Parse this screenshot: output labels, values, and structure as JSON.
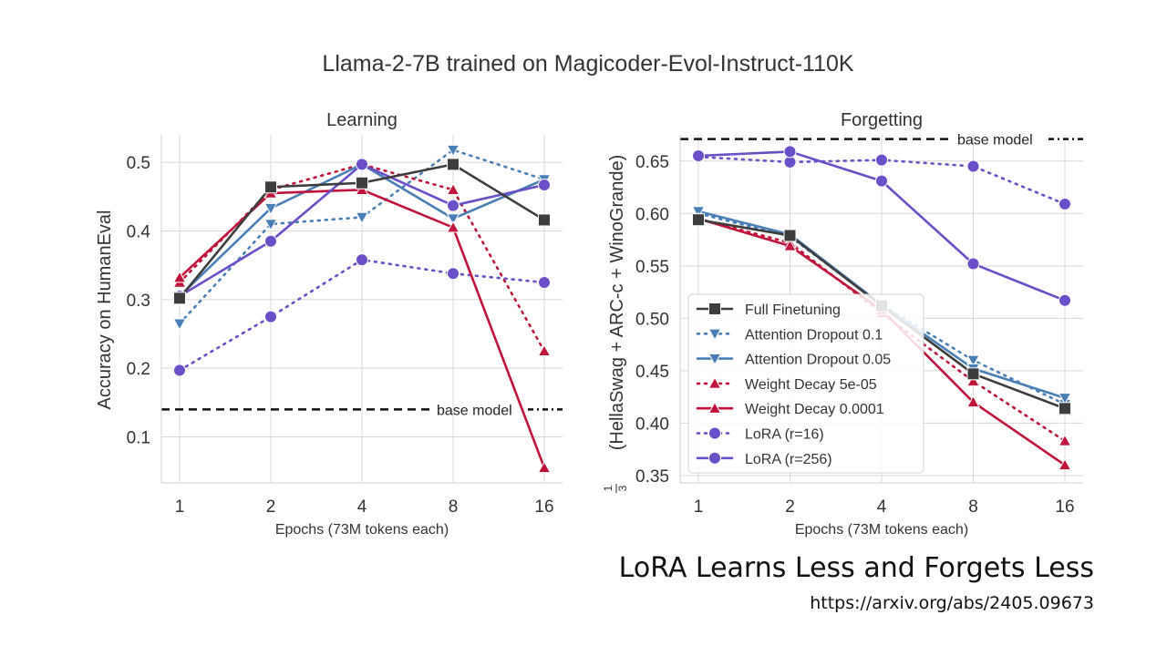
{
  "figure": {
    "suptitle": "Llama-2-7B trained on Magicoder-Evol-Instruct-110K"
  },
  "caption": "LoRA Learns Less and Forgets Less",
  "link": "https://arxiv.org/abs/2405.09673",
  "styles": {
    "Full Finetuning": {
      "color": "#3d3d3d",
      "dash": "solid",
      "marker": "square"
    },
    "Attention Dropout 0.1": {
      "color": "#4a7fb5",
      "dash": "dotted",
      "marker": "tri-down"
    },
    "Attention Dropout 0.05": {
      "color": "#4a7fb5",
      "dash": "solid",
      "marker": "tri-down"
    },
    "Weight Decay 5e-05": {
      "color": "#c0143c",
      "dash": "dotted",
      "marker": "tri-up"
    },
    "Weight Decay 0.0001": {
      "color": "#c0143c",
      "dash": "solid",
      "marker": "tri-up"
    },
    "LoRA (r=16)": {
      "color": "#6a4fc8",
      "dash": "dotted",
      "marker": "circle"
    },
    "LoRA (r=256)": {
      "color": "#6a4fc8",
      "dash": "solid",
      "marker": "circle"
    }
  },
  "chart_data": [
    {
      "type": "line",
      "title": "Learning",
      "xlabel": "Epochs (73M tokens each)",
      "ylabel": "Accuracy on HumanEval",
      "categories": [
        "1",
        "2",
        "4",
        "8",
        "16"
      ],
      "ylim": [
        0.033,
        0.54
      ],
      "yticks": [
        0.1,
        0.2,
        0.3,
        0.4,
        0.5
      ],
      "ytick_labels": [
        "0.1",
        "0.2",
        "0.3",
        "0.4",
        "0.5"
      ],
      "grid": true,
      "baseline": {
        "label": "base model",
        "value": 0.14
      },
      "series": [
        {
          "name": "Attention Dropout 0.1",
          "values": [
            0.265,
            0.41,
            0.42,
            0.518,
            0.475
          ]
        },
        {
          "name": "Weight Decay 5e-05",
          "values": [
            0.325,
            0.46,
            0.497,
            0.46,
            0.225
          ]
        },
        {
          "name": "LoRA (r=16)",
          "values": [
            0.197,
            0.275,
            0.358,
            0.338,
            0.325
          ]
        },
        {
          "name": "Attention Dropout 0.05",
          "values": [
            0.305,
            0.433,
            0.497,
            0.418,
            0.475
          ]
        },
        {
          "name": "Weight Decay 0.0001",
          "values": [
            0.332,
            0.455,
            0.46,
            0.405,
            0.055
          ]
        },
        {
          "name": "LoRA (r=256)",
          "values": [
            0.305,
            0.385,
            0.497,
            0.437,
            0.467
          ]
        },
        {
          "name": "Full Finetuning",
          "values": [
            0.302,
            0.464,
            0.47,
            0.497,
            0.416
          ]
        }
      ]
    },
    {
      "type": "line",
      "title": "Forgetting",
      "xlabel": "Epochs (73M tokens each)",
      "ylabel": "(HellaSwag + ARC-c + WinoGrande)",
      "ylabel_fraction": [
        "1",
        "3"
      ],
      "categories": [
        "1",
        "2",
        "4",
        "8",
        "16"
      ],
      "ylim": [
        0.343,
        0.675
      ],
      "yticks": [
        0.35,
        0.4,
        0.45,
        0.5,
        0.55,
        0.6,
        0.65
      ],
      "ytick_labels": [
        "0.35",
        "0.40",
        "0.45",
        "0.50",
        "0.55",
        "0.60",
        "0.65"
      ],
      "grid": true,
      "baseline": {
        "label": "base model",
        "value": 0.671
      },
      "legend": {
        "placement": "lower-left",
        "entries": [
          "Full Finetuning",
          "Attention Dropout 0.1",
          "Attention Dropout 0.05",
          "Weight Decay 5e-05",
          "Weight Decay 0.0001",
          "LoRA (r=16)",
          "LoRA (r=256)"
        ]
      },
      "series": [
        {
          "name": "LoRA (r=16)",
          "values": [
            0.654,
            0.649,
            0.651,
            0.645,
            0.609
          ]
        },
        {
          "name": "Attention Dropout 0.1",
          "values": [
            0.6,
            0.578,
            0.513,
            0.46,
            0.418
          ]
        },
        {
          "name": "Weight Decay 5e-05",
          "values": [
            0.595,
            0.572,
            0.505,
            0.44,
            0.383
          ]
        },
        {
          "name": "Attention Dropout 0.05",
          "values": [
            0.602,
            0.58,
            0.513,
            0.452,
            0.424
          ]
        },
        {
          "name": "Weight Decay 0.0001",
          "values": [
            0.595,
            0.569,
            0.508,
            0.42,
            0.36
          ]
        },
        {
          "name": "LoRA (r=256)",
          "values": [
            0.655,
            0.659,
            0.631,
            0.552,
            0.517
          ]
        },
        {
          "name": "Full Finetuning",
          "values": [
            0.594,
            0.579,
            0.512,
            0.447,
            0.414
          ]
        }
      ]
    }
  ]
}
